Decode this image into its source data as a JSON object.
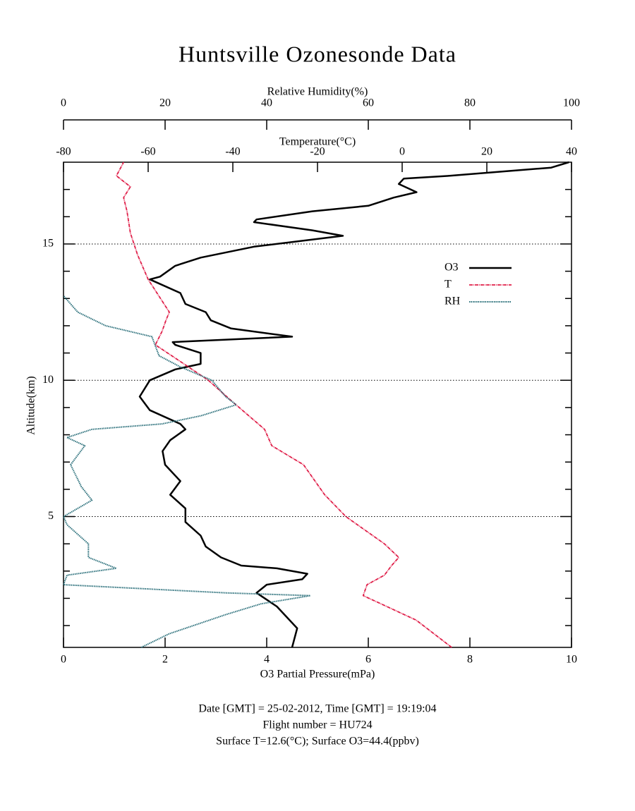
{
  "chart_data": {
    "type": "line",
    "title": "Huntsville Ozonesonde Data",
    "xlabel": "O3 Partial Pressure(mPa)",
    "x2label": "Temperature(°C)",
    "x3label": "Relative Humidity(%)",
    "ylabel": "Altitude(km)",
    "xlim": [
      0,
      10
    ],
    "xticks": [
      0,
      2,
      4,
      6,
      8,
      10
    ],
    "x2lim": [
      -80,
      40
    ],
    "x2ticks": [
      -80,
      -60,
      -40,
      -20,
      0,
      20,
      40
    ],
    "x3lim": [
      0,
      100
    ],
    "x3ticks": [
      0,
      20,
      40,
      60,
      80,
      100
    ],
    "ylim": [
      0.2,
      18.0
    ],
    "yticks": [
      5,
      10,
      15
    ],
    "yminorticks": [
      1,
      2,
      3,
      4,
      6,
      7,
      8,
      9,
      11,
      12,
      13,
      14,
      16,
      17
    ],
    "grid": true,
    "legend": "right",
    "series": [
      {
        "name": "O3",
        "color": "#000000",
        "axis": "x",
        "altitude": [
          0.2,
          0.9,
          1.7,
          2.2,
          2.5,
          2.7,
          2.9,
          3.1,
          3.2,
          3.5,
          3.9,
          4.3,
          4.8,
          5.3,
          5.8,
          6.3,
          6.9,
          7.4,
          7.8,
          8.2,
          8.4,
          8.9,
          9.4,
          10.0,
          10.4,
          10.6,
          11.0,
          11.3,
          11.4,
          11.6,
          11.9,
          12.2,
          12.5,
          12.8,
          13.2,
          13.7,
          13.8,
          14.2,
          14.5,
          14.9,
          15.3,
          15.5,
          15.8,
          15.9,
          16.2,
          16.4,
          16.7,
          16.9,
          17.2,
          17.4,
          17.5,
          17.8,
          18.0
        ],
        "values": [
          4.5,
          4.6,
          4.2,
          3.8,
          4.0,
          4.7,
          4.8,
          4.2,
          3.5,
          3.1,
          2.8,
          2.7,
          2.4,
          2.4,
          2.1,
          2.3,
          2.0,
          1.95,
          2.1,
          2.4,
          2.3,
          1.7,
          1.5,
          1.7,
          2.2,
          2.7,
          2.7,
          2.2,
          2.15,
          4.5,
          3.3,
          2.9,
          2.8,
          2.4,
          2.3,
          1.7,
          1.9,
          2.2,
          2.7,
          3.75,
          5.5,
          4.9,
          3.75,
          3.8,
          4.9,
          6.0,
          6.5,
          6.95,
          6.6,
          6.7,
          7.6,
          9.6,
          9.95
        ]
      },
      {
        "name": "T",
        "color": "#e0204a",
        "axis": "x2",
        "altitude": [
          0.2,
          1.2,
          2.1,
          2.5,
          2.85,
          3.2,
          3.5,
          4.0,
          5.0,
          5.8,
          6.9,
          7.6,
          8.2,
          9.2,
          10.0,
          10.7,
          11.3,
          11.8,
          12.2,
          12.5,
          13.1,
          13.7,
          14.6,
          15.4,
          16.2,
          16.7,
          17.1,
          17.5,
          18.0
        ],
        "values": [
          11.7,
          3.3,
          -9.2,
          -8.3,
          -4.2,
          -2.5,
          -0.8,
          -4.2,
          -13.3,
          -18.3,
          -23.3,
          -30.8,
          -32.5,
          -40,
          -45.8,
          -52.5,
          -58.3,
          -56.7,
          -55.8,
          -55,
          -57.5,
          -60,
          -62.5,
          -64.2,
          -65,
          -65.8,
          -64.2,
          -67.5,
          -65.8
        ]
      },
      {
        "name": "RH",
        "color": "#2a6f7a",
        "axis": "x3",
        "altitude": [
          0.2,
          0.7,
          1.4,
          1.8,
          2.1,
          2.2,
          2.5,
          2.85,
          3.1,
          3.5,
          4.0,
          4.7,
          5.0,
          5.6,
          6.1,
          6.9,
          7.6,
          7.9,
          8.2,
          8.4,
          8.7,
          9.1,
          9.4,
          10.0,
          10.5,
          10.9,
          11.3,
          11.6,
          12.0,
          12.5,
          13.1
        ],
        "values": [
          15.3,
          20.8,
          31.9,
          38.9,
          48.6,
          31.9,
          0,
          0.7,
          10.4,
          4.9,
          4.9,
          0.7,
          0,
          5.6,
          3.5,
          1.4,
          4.2,
          0.7,
          5.6,
          19.4,
          27.1,
          34,
          31.9,
          29.2,
          22.9,
          18.8,
          18,
          17.4,
          8.3,
          2.8,
          0
        ]
      }
    ],
    "footer": [
      "Date [GMT] = 25-02-2012,  Time [GMT] = 19:19:04",
      "Flight number = HU724",
      "Surface T=12.6(°C); Surface O3=44.4(ppbv)"
    ]
  }
}
